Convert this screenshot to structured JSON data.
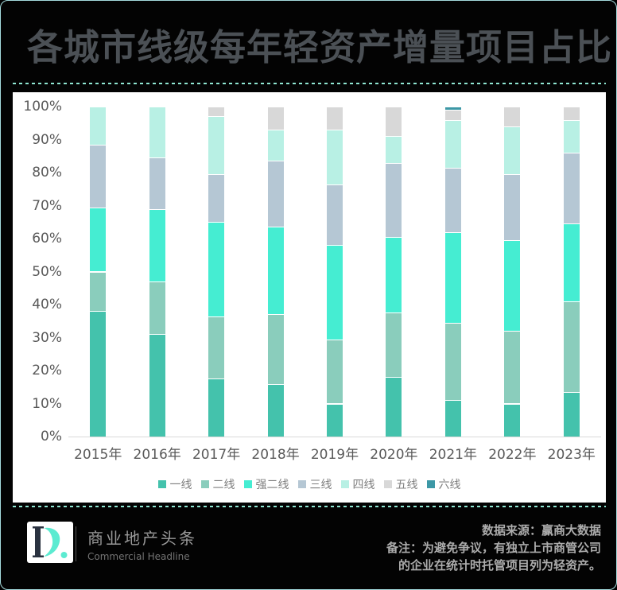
{
  "page": {
    "title": "各城市线级每年轻资产增量项目占比"
  },
  "colors": {
    "background": "#030303",
    "page_border": "#a5dcde",
    "dashed_rule": "#8fe7d3",
    "panel": "#ffffff",
    "title_text": "#4b5055",
    "axis_text": "#595959",
    "legend_text": "#7f7f7f",
    "axis_line": "#d9d9d9",
    "logo_mint": "#5cebd1",
    "logo_dark": "#2a3240"
  },
  "chart_data": {
    "type": "bar",
    "stacked": true,
    "unit": "%",
    "title": "各城市线级每年轻资产增量项目占比",
    "xlabel": "",
    "ylabel": "",
    "ylim": [
      0,
      100
    ],
    "grid": false,
    "legend_position": "bottom",
    "yticks": [
      "0%",
      "10%",
      "20%",
      "30%",
      "40%",
      "50%",
      "60%",
      "70%",
      "80%",
      "90%",
      "100%"
    ],
    "categories": [
      "2015年",
      "2016年",
      "2017年",
      "2018年",
      "2019年",
      "2020年",
      "2021年",
      "2022年",
      "2023年"
    ],
    "series": [
      {
        "name": "一线",
        "color": "#44c2ac",
        "values": [
          38,
          31,
          17.5,
          16,
          10,
          18,
          11,
          10,
          13.5
        ]
      },
      {
        "name": "二线",
        "color": "#8acdbc",
        "values": [
          12,
          16,
          19,
          21,
          19.5,
          19.5,
          23.5,
          22,
          27.5
        ]
      },
      {
        "name": "强二线",
        "color": "#45edd2",
        "values": [
          19.5,
          22,
          28.5,
          26.5,
          28.5,
          23,
          27.5,
          27.5,
          23.5
        ]
      },
      {
        "name": "三线",
        "color": "#b5c7d4",
        "values": [
          19,
          15.5,
          14.5,
          20,
          18.5,
          22.5,
          19.5,
          20,
          21.5
        ]
      },
      {
        "name": "四线",
        "color": "#b8f0e4",
        "values": [
          11.5,
          15.5,
          17.5,
          9.5,
          16.5,
          8,
          14.5,
          14.5,
          10
        ]
      },
      {
        "name": "五线",
        "color": "#d8d8d8",
        "values": [
          0,
          0,
          3,
          7,
          7,
          9,
          3,
          6,
          4
        ]
      },
      {
        "name": "六线",
        "color": "#3d98a6",
        "values": [
          0,
          0,
          0,
          0,
          0,
          0,
          1,
          0,
          0
        ]
      }
    ]
  },
  "footer": {
    "logo_text": "D.",
    "brand_cn": "商业地产头条",
    "brand_en": "Commercial Headline",
    "source": "数据来源：赢商大数据",
    "note_line1": "备注：为避免争议，有独立上市商管公司",
    "note_line2": "的企业在统计时托管项目列为轻资产。"
  }
}
